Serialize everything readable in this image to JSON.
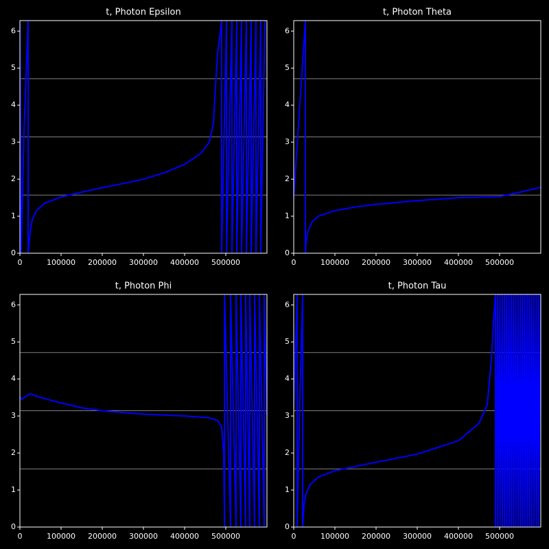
{
  "chart_data": [
    {
      "type": "line",
      "title": "t, Photon Epsilon",
      "color": "#0000ff",
      "hline_color": "#808080",
      "x": [
        0,
        3000,
        10000,
        20000,
        20000,
        25000,
        30000,
        40000,
        60000,
        100000,
        150000,
        200000,
        250000,
        300000,
        350000,
        400000,
        440000,
        460000,
        470000,
        475000,
        480000,
        485000,
        490000,
        490000,
        501700,
        501700,
        515000,
        515000,
        526700,
        526700,
        538300,
        538300,
        550000,
        550000,
        561700,
        561700,
        573300,
        573300,
        585000,
        585000,
        595000
      ],
      "values": [
        6.2,
        0,
        3.3,
        6.28,
        0,
        0.6,
        0.9,
        1.15,
        1.35,
        1.52,
        1.65,
        1.77,
        1.88,
        2.0,
        2.17,
        2.4,
        2.7,
        3.0,
        3.5,
        4.5,
        5.4,
        5.8,
        6.28,
        0,
        6.28,
        0,
        6.28,
        0,
        6.28,
        0,
        6.28,
        0,
        6.28,
        0,
        6.28,
        0,
        6.28,
        0,
        6.28,
        0,
        6.28
      ],
      "hlines": [
        1.5708,
        3.1416,
        4.7124
      ],
      "xlim": [
        0,
        600000
      ],
      "ylim": [
        0,
        6.283
      ],
      "xticks": [
        0,
        100000,
        200000,
        300000,
        400000,
        500000
      ],
      "yticks": [
        0,
        1,
        2,
        3,
        4,
        5,
        6
      ]
    },
    {
      "type": "line",
      "title": "t, Photon Theta",
      "color": "#0000ff",
      "hline_color": "#808080",
      "x": [
        0,
        28300,
        28300,
        30000,
        35000,
        45000,
        60000,
        100000,
        150000,
        200000,
        300000,
        400000,
        500000,
        550000,
        600000
      ],
      "values": [
        1.5,
        6.28,
        0,
        0.3,
        0.6,
        0.85,
        1.0,
        1.15,
        1.25,
        1.32,
        1.42,
        1.5,
        1.53,
        1.65,
        1.78
      ],
      "hlines": [
        1.5708,
        3.1416,
        4.7124
      ],
      "xlim": [
        0,
        600000
      ],
      "ylim": [
        0,
        6.283
      ],
      "xticks": [
        0,
        100000,
        200000,
        300000,
        400000,
        500000
      ],
      "yticks": [
        0,
        1,
        2,
        3,
        4,
        5,
        6
      ]
    },
    {
      "type": "line",
      "title": "t, Photon Phi",
      "color": "#0000ff",
      "hline_color": "#808080",
      "x": [
        0,
        5000,
        10000,
        25000,
        50000,
        100000,
        150000,
        200000,
        300000,
        400000,
        460000,
        480000,
        490000,
        495000,
        497000,
        497000,
        511700,
        511700,
        525000,
        525000,
        536700,
        536700,
        548300,
        548300,
        558300,
        558300,
        570000,
        570000,
        581700,
        581700,
        593300,
        593300,
        600000
      ],
      "values": [
        3.5,
        3.45,
        3.5,
        3.6,
        3.5,
        3.35,
        3.22,
        3.14,
        3.05,
        3.0,
        2.95,
        2.88,
        2.7,
        2.0,
        0,
        6.28,
        0,
        6.28,
        0,
        6.28,
        0,
        6.28,
        0,
        6.28,
        0,
        6.28,
        0,
        6.28,
        0,
        6.28,
        0,
        6.28,
        3.0
      ],
      "hlines": [
        1.5708,
        3.1416,
        4.7124
      ],
      "xlim": [
        0,
        600000
      ],
      "ylim": [
        0,
        6.283
      ],
      "xticks": [
        0,
        100000,
        200000,
        300000,
        400000,
        500000
      ],
      "yticks": [
        0,
        1,
        2,
        3,
        4,
        5,
        6
      ]
    },
    {
      "type": "line",
      "title": "t, Photon Tau",
      "color": "#0000ff",
      "hline_color": "#808080",
      "x": [
        0,
        8300,
        8300,
        15000,
        21700,
        21700,
        25000,
        30000,
        40000,
        60000,
        100000,
        200000,
        300000,
        400000,
        450000,
        470000,
        480000,
        485000,
        490000,
        490000,
        495500,
        495500,
        501000,
        501000,
        506500,
        506500,
        512000,
        512000,
        517500,
        517500,
        523000,
        523000,
        528500,
        528500,
        534000,
        534000,
        539500,
        539500,
        545000,
        545000,
        550500,
        550500,
        556000,
        556000,
        561500,
        561500,
        567000,
        567000,
        572500,
        572500,
        578000,
        578000,
        583500,
        583500,
        589000,
        589000,
        594500,
        594500,
        600000
      ],
      "values": [
        3.2,
        6.28,
        0,
        3.5,
        6.28,
        0,
        0.6,
        0.9,
        1.15,
        1.35,
        1.52,
        1.75,
        1.97,
        2.33,
        2.8,
        3.3,
        4.5,
        5.5,
        6.28,
        0,
        6.28,
        0,
        6.28,
        0,
        6.28,
        0,
        6.28,
        0,
        6.28,
        0,
        6.28,
        0,
        6.28,
        0,
        6.28,
        0,
        6.28,
        0,
        6.28,
        0,
        6.28,
        0,
        6.28,
        0,
        6.28,
        0,
        6.28,
        0,
        6.28,
        0,
        6.28,
        0,
        6.28,
        0,
        6.28,
        0,
        6.28,
        0,
        6.28
      ],
      "hlines": [
        1.5708,
        3.1416,
        4.7124
      ],
      "xlim": [
        0,
        600000
      ],
      "ylim": [
        0,
        6.283
      ],
      "xticks": [
        0,
        100000,
        200000,
        300000,
        400000,
        500000
      ],
      "yticks": [
        0,
        1,
        2,
        3,
        4,
        5,
        6
      ]
    }
  ]
}
